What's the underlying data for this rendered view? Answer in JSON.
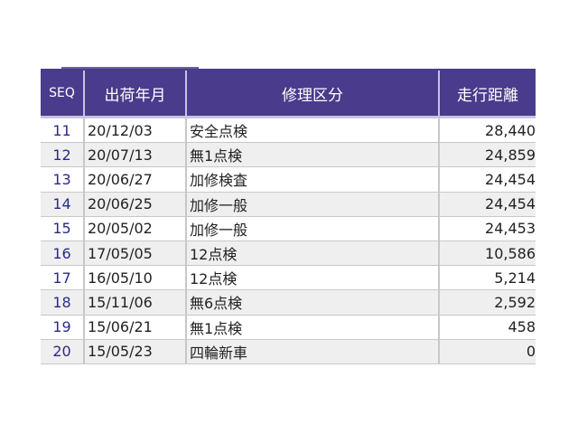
{
  "table": {
    "headers": [
      "SEQ",
      "出荷年月",
      "修理区分",
      "走行距離"
    ],
    "rows": [
      {
        "seq": "11",
        "date": "20/12/03",
        "type": "安全点検",
        "distance": "28,440"
      },
      {
        "seq": "12",
        "date": "20/07/13",
        "type": "無1点検",
        "distance": "24,859"
      },
      {
        "seq": "13",
        "date": "20/06/27",
        "type": "加修検査",
        "distance": "24,454"
      },
      {
        "seq": "14",
        "date": "20/06/25",
        "type": "加修一般",
        "distance": "24,454"
      },
      {
        "seq": "15",
        "date": "20/05/02",
        "type": "加修一般",
        "distance": "24,453"
      },
      {
        "seq": "16",
        "date": "17/05/05",
        "type": "12点検",
        "distance": "10,586"
      },
      {
        "seq": "17",
        "date": "16/05/10",
        "type": "12点検",
        "distance": "5,214"
      },
      {
        "seq": "18",
        "date": "15/11/06",
        "type": "無6点検",
        "distance": "2,592"
      },
      {
        "seq": "19",
        "date": "15/06/21",
        "type": "無1点検",
        "distance": "458"
      },
      {
        "seq": "20",
        "date": "15/05/23",
        "type": "四輪新車",
        "distance": "0"
      }
    ]
  },
  "colors": {
    "header_bg": "#4a3b8c",
    "row_alt": "#efefef",
    "seq_text": "#2a2a8a"
  }
}
